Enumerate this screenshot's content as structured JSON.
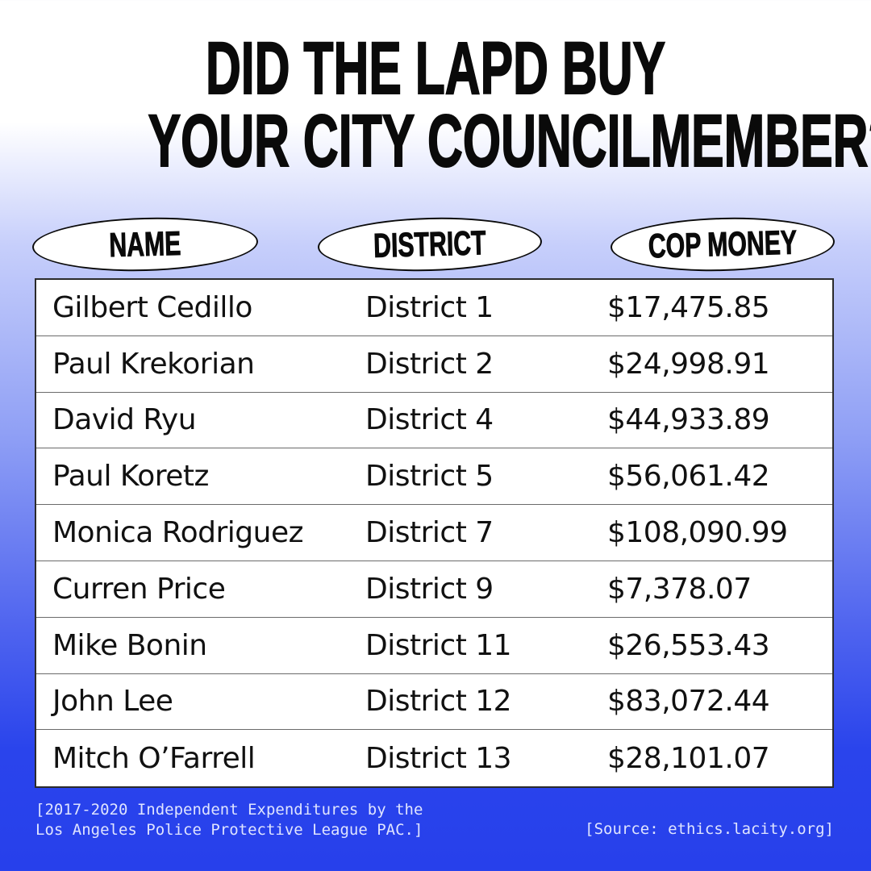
{
  "headline": {
    "line1": "DID THE LAPD BUY",
    "line2": "YOUR CITY COUNCILMEMBER?"
  },
  "columns": {
    "name": "NAME",
    "district": "DISTRICT",
    "money": "COP MONEY"
  },
  "rows": [
    {
      "name": "Gilbert Cedillo",
      "district": "District 1",
      "money": "$17,475.85"
    },
    {
      "name": "Paul Krekorian",
      "district": "District 2",
      "money": "$24,998.91"
    },
    {
      "name": "David Ryu",
      "district": "District 4",
      "money": "$44,933.89"
    },
    {
      "name": "Paul Koretz",
      "district": "District 5",
      "money": "$56,061.42"
    },
    {
      "name": "Monica Rodriguez",
      "district": "District 7",
      "money": "$108,090.99"
    },
    {
      "name": "Curren Price",
      "district": "District 9",
      "money": "$7,378.07"
    },
    {
      "name": "Mike Bonin",
      "district": "District 11",
      "money": "$26,553.43"
    },
    {
      "name": "John Lee",
      "district": "District 12",
      "money": "$83,072.44"
    },
    {
      "name": "Mitch O’Farrell",
      "district": "District 13",
      "money": "$28,101.07"
    }
  ],
  "footnote": {
    "line1": "[2017-2020 Independent Expenditures by the",
    "line2": "Los Angeles Police Protective League PAC.]",
    "source": "[Source: ethics.lacity.org]"
  },
  "colors": {
    "gradient_top": "#ffffff",
    "gradient_bottom": "#2740eb",
    "text": "#0a0a0a",
    "footnote_text": "#dfe4ff"
  }
}
